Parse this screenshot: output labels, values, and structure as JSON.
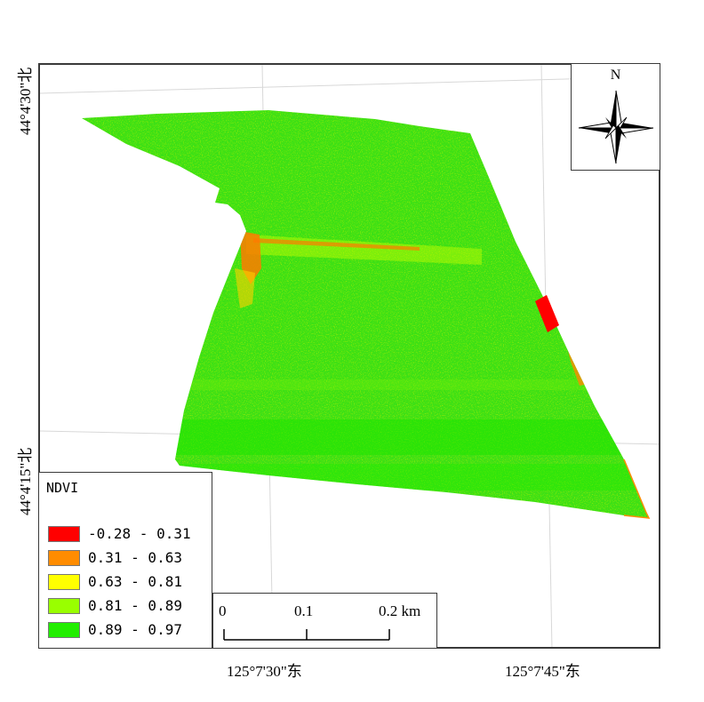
{
  "map": {
    "graticule": {
      "latitudes": [
        "44°4'30\"北",
        "44°4'15\"北"
      ],
      "longitudes": [
        "125°7'30\"东",
        "125°7'45\"东"
      ]
    },
    "north_arrow": {
      "letter": "N"
    },
    "legend": {
      "title": "NDVI",
      "classes": [
        {
          "label": "-0.28 - 0.31",
          "color": "#ff0000"
        },
        {
          "label": "0.31 - 0.63",
          "color": "#ff8c00"
        },
        {
          "label": "0.63 - 0.81",
          "color": "#ffff00"
        },
        {
          "label": "0.81 - 0.89",
          "color": "#99ff00"
        },
        {
          "label": "0.89 - 0.97",
          "color": "#22ee00"
        }
      ]
    },
    "scale_bar": {
      "ticks": [
        "0",
        "0.1",
        "0.2 km"
      ]
    },
    "colors": {
      "field": "#3ee016",
      "frame": "#3a3a3a",
      "grid": "#d8d8d8"
    }
  }
}
